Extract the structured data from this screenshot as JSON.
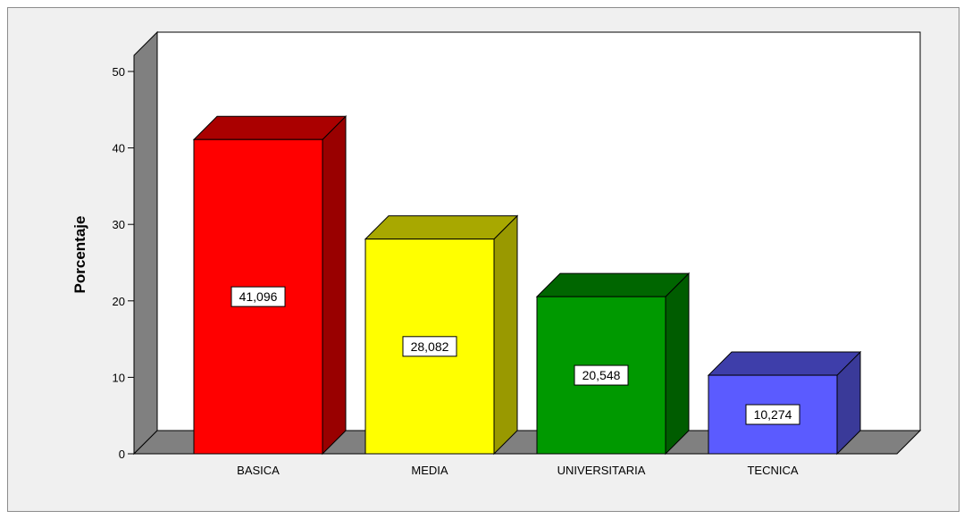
{
  "chart_data": {
    "type": "bar",
    "title": "",
    "xlabel": "",
    "ylabel": "Porcentaje",
    "ylim": [
      0,
      50
    ],
    "yticks": [
      0,
      10,
      20,
      30,
      40,
      50
    ],
    "categories": [
      "BASICA",
      "MEDIA",
      "UNIVERSITARIA",
      "TECNICA"
    ],
    "values": [
      41.096,
      28.082,
      20.548,
      10.274
    ],
    "data_labels": [
      "41,096",
      "28,082",
      "20,548",
      "10,274"
    ],
    "bar_colors": [
      {
        "front": "#ff0000",
        "side": "#990000",
        "top": "#aa0000"
      },
      {
        "front": "#ffff00",
        "side": "#999900",
        "top": "#a8a800"
      },
      {
        "front": "#009900",
        "side": "#005c00",
        "top": "#006600"
      },
      {
        "front": "#5b5bff",
        "side": "#3a3a99",
        "top": "#3e3eaa"
      }
    ],
    "style": "3d-bar",
    "grid": false,
    "wall_color": "#ffffff",
    "floor_color": "#808080",
    "side_wall_color": "#808080"
  }
}
